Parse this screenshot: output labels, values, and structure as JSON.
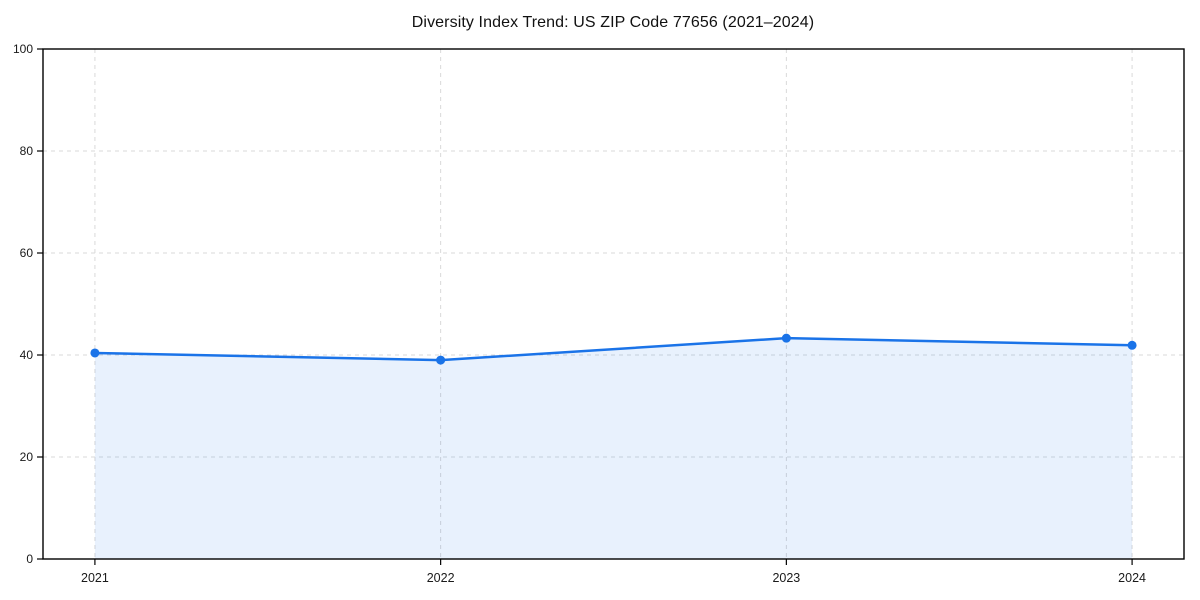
{
  "page": {
    "background": "#ffffff"
  },
  "chart_data": {
    "type": "line",
    "title": "Diversity Index Trend: US ZIP Code 77656 (2021–2024)",
    "categories": [
      "2021",
      "2022",
      "2023",
      "2024"
    ],
    "x": [
      2021,
      2022,
      2023,
      2024
    ],
    "series": [
      {
        "name": "Diversity Index",
        "values": [
          40.4,
          39.0,
          43.3,
          41.9
        ]
      }
    ],
    "xlabel": "",
    "ylabel": "",
    "ylim": [
      0,
      100
    ],
    "yticks": [
      0,
      20,
      40,
      60,
      80,
      100
    ],
    "grid": true,
    "grid_line_style": "dashed",
    "legend_position": "none",
    "area_fill": true,
    "marker_shape": "circle",
    "colors": {
      "line": "#1a73e8",
      "marker": "#1a73e8",
      "area_fill": "rgba(26,115,232,0.10)",
      "grid": "#d9d9d9",
      "axis": "#000000",
      "tick_label": "#1a1a1a",
      "title": "#111111"
    }
  }
}
